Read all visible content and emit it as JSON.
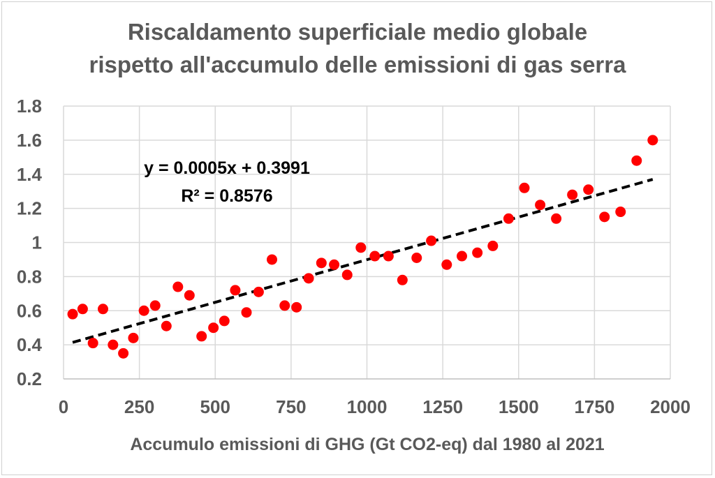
{
  "chart_data": {
    "type": "scatter",
    "title_lines": [
      "Riscaldamento superficiale medio globale",
      "rispetto all'accumulo delle emissioni di gas serra"
    ],
    "xlabel": "Accumulo emissioni di GHG (Gt CO2-eq) dal 1980 al 2021",
    "ylabel": "",
    "xlim": [
      0,
      2000
    ],
    "ylim": [
      0.2,
      1.8
    ],
    "x_ticks": [
      0,
      250,
      500,
      750,
      1000,
      1250,
      1500,
      1750,
      2000
    ],
    "x_tick_labels": [
      "0",
      "250",
      "500",
      "750",
      "1000",
      "1250",
      "1500",
      "1750",
      "2000"
    ],
    "y_ticks": [
      0.2,
      0.4,
      0.6,
      0.8,
      1.0,
      1.2,
      1.4,
      1.6,
      1.8
    ],
    "y_tick_labels": [
      "0.2",
      "0.4",
      "0.6",
      "0.8",
      "1",
      "1.2",
      "1.4",
      "1.6",
      "1.8"
    ],
    "grid": true,
    "point_color": "#ff0000",
    "trendline_color": "#000000",
    "series": [
      {
        "x": [
          30,
          63,
          97,
          130,
          163,
          197,
          230,
          265,
          302,
          339,
          377,
          415,
          455,
          494,
          530,
          566,
          603,
          643,
          687,
          729,
          768,
          808,
          850,
          892,
          935,
          980,
          1026,
          1071,
          1117,
          1164,
          1212,
          1263,
          1313,
          1364,
          1415,
          1467,
          1519,
          1571,
          1624,
          1677,
          1730,
          1783,
          1836,
          1889,
          1942
        ],
        "y": [
          0.58,
          0.61,
          0.41,
          0.61,
          0.4,
          0.35,
          0.44,
          0.6,
          0.63,
          0.51,
          0.74,
          0.69,
          0.45,
          0.5,
          0.54,
          0.72,
          0.59,
          0.71,
          0.9,
          0.63,
          0.62,
          0.79,
          0.88,
          0.87,
          0.81,
          0.97,
          0.92,
          0.92,
          0.78,
          0.91,
          1.01,
          0.87,
          0.92,
          0.94,
          0.98,
          1.14,
          1.32,
          1.22,
          1.14,
          1.28,
          1.31,
          1.15,
          1.18,
          1.48,
          1.6
        ]
      }
    ],
    "trendline": {
      "slope": 0.0005,
      "intercept": 0.3991,
      "x_range": [
        30,
        1942
      ],
      "equation": "y = 0.0005x + 0.3991",
      "r_squared": "R² = 0.8576"
    }
  }
}
